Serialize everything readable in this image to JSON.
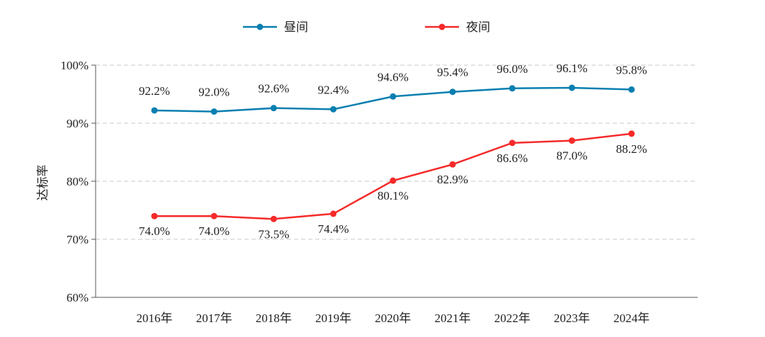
{
  "chart_data": {
    "type": "line",
    "title": "",
    "xlabel": "",
    "ylabel": "达标率",
    "ylim": [
      60,
      100
    ],
    "yticks": [
      "60%",
      "70%",
      "80%",
      "90%",
      "100%"
    ],
    "grid": "horizontal dashed",
    "legend": "top-center",
    "categories": [
      "2016年",
      "2017年",
      "2018年",
      "2019年",
      "2020年",
      "2021年",
      "2022年",
      "2023年",
      "2024年"
    ],
    "series": [
      {
        "name": "昼间",
        "color": "#0a7fb0",
        "values": [
          92.2,
          92.0,
          92.6,
          92.4,
          94.6,
          95.4,
          96.0,
          96.1,
          95.8
        ],
        "labels": [
          "92.2%",
          "92.0%",
          "92.6%",
          "92.4%",
          "94.6%",
          "95.4%",
          "96.0%",
          "96.1%",
          "95.8%"
        ]
      },
      {
        "name": "夜间",
        "color": "#f52a2a",
        "values": [
          74.0,
          74.0,
          73.5,
          74.4,
          80.1,
          82.9,
          86.6,
          87.0,
          88.2
        ],
        "labels": [
          "74.0%",
          "74.0%",
          "73.5%",
          "74.4%",
          "80.1%",
          "82.9%",
          "86.6%",
          "87.0%",
          "88.2%"
        ]
      }
    ]
  }
}
